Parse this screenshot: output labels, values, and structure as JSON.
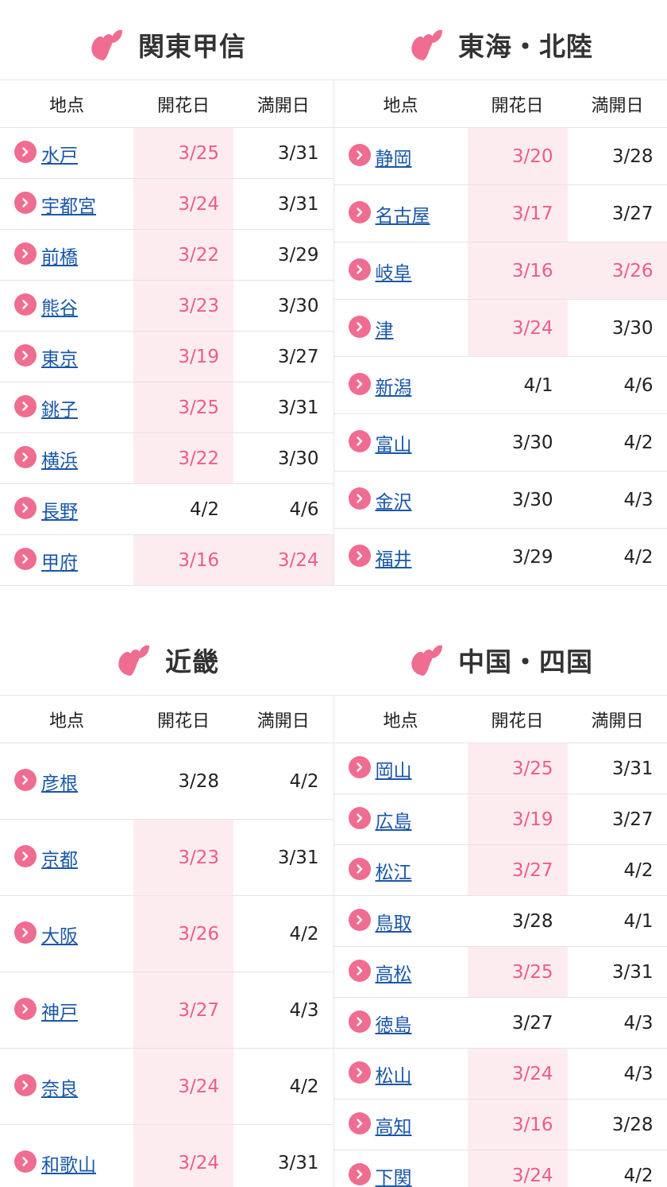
{
  "columns": {
    "place": "地点",
    "bloom": "開花日",
    "full": "満開日"
  },
  "colors": {
    "accent": "#ef6d90",
    "highlight_bg": "#fdecef",
    "highlight_text": "#ee5c86",
    "link": "#1a57a8"
  },
  "icons": {
    "region": "sakura-petal-icon",
    "row": "chevron-right-icon"
  },
  "regions": {
    "kanto": {
      "title": "関東甲信",
      "rows": [
        {
          "name": "水戸",
          "bloom": "3/25",
          "full": "3/31",
          "bloom_hl": true,
          "full_hl": false
        },
        {
          "name": "宇都宮",
          "bloom": "3/24",
          "full": "3/31",
          "bloom_hl": true,
          "full_hl": false
        },
        {
          "name": "前橋",
          "bloom": "3/22",
          "full": "3/29",
          "bloom_hl": true,
          "full_hl": false
        },
        {
          "name": "熊谷",
          "bloom": "3/23",
          "full": "3/30",
          "bloom_hl": true,
          "full_hl": false
        },
        {
          "name": "東京",
          "bloom": "3/19",
          "full": "3/27",
          "bloom_hl": true,
          "full_hl": false
        },
        {
          "name": "銚子",
          "bloom": "3/25",
          "full": "3/31",
          "bloom_hl": true,
          "full_hl": false
        },
        {
          "name": "横浜",
          "bloom": "3/22",
          "full": "3/30",
          "bloom_hl": true,
          "full_hl": false
        },
        {
          "name": "長野",
          "bloom": "4/2",
          "full": "4/6",
          "bloom_hl": false,
          "full_hl": false
        },
        {
          "name": "甲府",
          "bloom": "3/16",
          "full": "3/24",
          "bloom_hl": true,
          "full_hl": true
        }
      ]
    },
    "tokai": {
      "title": "東海・北陸",
      "rows": [
        {
          "name": "静岡",
          "bloom": "3/20",
          "full": "3/28",
          "bloom_hl": true,
          "full_hl": false
        },
        {
          "name": "名古屋",
          "bloom": "3/17",
          "full": "3/27",
          "bloom_hl": true,
          "full_hl": false
        },
        {
          "name": "岐阜",
          "bloom": "3/16",
          "full": "3/26",
          "bloom_hl": true,
          "full_hl": true
        },
        {
          "name": "津",
          "bloom": "3/24",
          "full": "3/30",
          "bloom_hl": true,
          "full_hl": false
        },
        {
          "name": "新潟",
          "bloom": "4/1",
          "full": "4/6",
          "bloom_hl": false,
          "full_hl": false
        },
        {
          "name": "富山",
          "bloom": "3/30",
          "full": "4/2",
          "bloom_hl": false,
          "full_hl": false
        },
        {
          "name": "金沢",
          "bloom": "3/30",
          "full": "4/3",
          "bloom_hl": false,
          "full_hl": false
        },
        {
          "name": "福井",
          "bloom": "3/29",
          "full": "4/2",
          "bloom_hl": false,
          "full_hl": false
        }
      ]
    },
    "kinki": {
      "title": "近畿",
      "rows": [
        {
          "name": "彦根",
          "bloom": "3/28",
          "full": "4/2",
          "bloom_hl": false,
          "full_hl": false
        },
        {
          "name": "京都",
          "bloom": "3/23",
          "full": "3/31",
          "bloom_hl": true,
          "full_hl": false
        },
        {
          "name": "大阪",
          "bloom": "3/26",
          "full": "4/2",
          "bloom_hl": true,
          "full_hl": false
        },
        {
          "name": "神戸",
          "bloom": "3/27",
          "full": "4/3",
          "bloom_hl": true,
          "full_hl": false
        },
        {
          "name": "奈良",
          "bloom": "3/24",
          "full": "4/2",
          "bloom_hl": true,
          "full_hl": false
        },
        {
          "name": "和歌山",
          "bloom": "3/24",
          "full": "3/31",
          "bloom_hl": true,
          "full_hl": false
        }
      ]
    },
    "chugoku": {
      "title": "中国・四国",
      "rows": [
        {
          "name": "岡山",
          "bloom": "3/25",
          "full": "3/31",
          "bloom_hl": true,
          "full_hl": false
        },
        {
          "name": "広島",
          "bloom": "3/19",
          "full": "3/27",
          "bloom_hl": true,
          "full_hl": false
        },
        {
          "name": "松江",
          "bloom": "3/27",
          "full": "4/2",
          "bloom_hl": true,
          "full_hl": false
        },
        {
          "name": "鳥取",
          "bloom": "3/28",
          "full": "4/1",
          "bloom_hl": false,
          "full_hl": false
        },
        {
          "name": "高松",
          "bloom": "3/25",
          "full": "3/31",
          "bloom_hl": true,
          "full_hl": false
        },
        {
          "name": "徳島",
          "bloom": "3/27",
          "full": "4/3",
          "bloom_hl": false,
          "full_hl": false
        },
        {
          "name": "松山",
          "bloom": "3/24",
          "full": "4/3",
          "bloom_hl": true,
          "full_hl": false
        },
        {
          "name": "高知",
          "bloom": "3/16",
          "full": "3/28",
          "bloom_hl": true,
          "full_hl": false
        },
        {
          "name": "下関",
          "bloom": "3/24",
          "full": "4/2",
          "bloom_hl": true,
          "full_hl": false
        }
      ]
    }
  }
}
